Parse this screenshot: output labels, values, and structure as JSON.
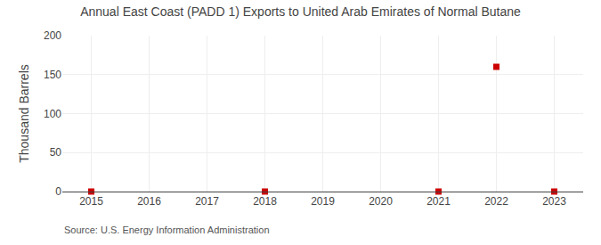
{
  "chart_data": {
    "type": "scatter",
    "title": "Annual East Coast (PADD 1) Exports to United Arab Emirates of Normal Butane",
    "y_label": "Thousand Barrels",
    "annotations": [
      "Source: U.S. Energy Information Administration"
    ],
    "x": [
      2015,
      2018,
      2021,
      2022,
      2023
    ],
    "values": [
      0,
      0,
      0,
      160,
      0
    ],
    "color": "#cc0000",
    "marker": "square",
    "xlim": [
      2014.5,
      2023.5
    ],
    "xticks": [
      2015,
      2016,
      2017,
      2018,
      2019,
      2020,
      2021,
      2022,
      2023
    ],
    "ylim": [
      0,
      200
    ],
    "yticks": [
      0,
      50,
      100,
      150,
      200
    ],
    "grid": true
  }
}
